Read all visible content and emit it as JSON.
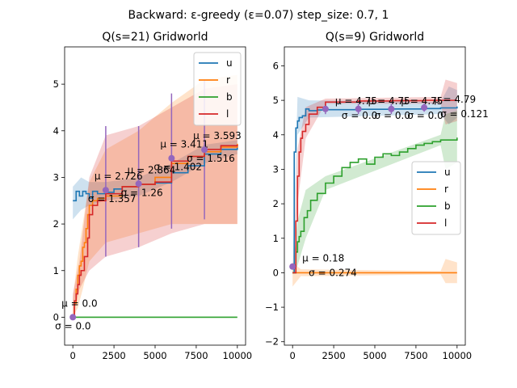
{
  "figure": {
    "suptitle": "Backward: ε-greedy (ε=0.07) step_size: 0.7, 1"
  },
  "chart_data": [
    {
      "type": "line",
      "title": "Q(s=21) Gridworld",
      "xlim": [
        -500,
        10500
      ],
      "ylim": [
        -0.6,
        5.8
      ],
      "xticks": [
        0,
        2500,
        5000,
        7500,
        10000
      ],
      "yticks": [
        0,
        1,
        2,
        3,
        4,
        5
      ],
      "legend_position": "top-right",
      "series": [
        {
          "name": "u",
          "color": "#1f77b4",
          "points": [
            [
              0,
              2.5
            ],
            [
              200,
              2.7
            ],
            [
              400,
              2.6
            ],
            [
              600,
              2.7
            ],
            [
              800,
              2.65
            ],
            [
              1000,
              2.55
            ],
            [
              1200,
              2.7
            ],
            [
              1500,
              2.65
            ],
            [
              2000,
              2.68
            ],
            [
              2500,
              2.75
            ],
            [
              3000,
              2.8
            ],
            [
              3500,
              2.8
            ],
            [
              4000,
              2.85
            ],
            [
              5000,
              2.88
            ],
            [
              6000,
              3.1
            ],
            [
              7000,
              3.25
            ],
            [
              8000,
              3.5
            ],
            [
              9000,
              3.6
            ],
            [
              10000,
              3.68
            ]
          ],
          "band": [
            [
              0,
              2.1,
              2.8
            ],
            [
              500,
              2.3,
              3.0
            ],
            [
              1000,
              2.4,
              2.9
            ],
            [
              2000,
              2.5,
              2.9
            ],
            [
              4000,
              2.6,
              3.0
            ],
            [
              6000,
              2.9,
              3.3
            ],
            [
              8000,
              3.3,
              3.7
            ],
            [
              10000,
              3.5,
              3.8
            ]
          ]
        },
        {
          "name": "r",
          "color": "#ff7f0e",
          "points": [
            [
              0,
              0.0
            ],
            [
              100,
              0.3
            ],
            [
              200,
              0.6
            ],
            [
              300,
              0.9
            ],
            [
              400,
              1.1
            ],
            [
              500,
              1.2
            ],
            [
              600,
              1.5
            ],
            [
              700,
              1.6
            ],
            [
              800,
              1.9
            ],
            [
              900,
              2.2
            ],
            [
              1000,
              2.4
            ],
            [
              1200,
              2.5
            ],
            [
              1500,
              2.55
            ],
            [
              2000,
              2.6
            ],
            [
              3000,
              2.8
            ],
            [
              4000,
              2.85
            ],
            [
              5000,
              3.0
            ],
            [
              6000,
              3.3
            ],
            [
              7000,
              3.45
            ],
            [
              8000,
              3.55
            ],
            [
              9000,
              3.65
            ],
            [
              10000,
              3.72
            ]
          ],
          "band": [
            [
              0,
              0.0,
              0.4
            ],
            [
              300,
              0.2,
              1.3
            ],
            [
              600,
              0.6,
              2.0
            ],
            [
              1000,
              1.2,
              2.9
            ],
            [
              2000,
              1.6,
              3.6
            ],
            [
              4000,
              1.8,
              4.0
            ],
            [
              6000,
              2.0,
              4.6
            ],
            [
              8000,
              2.0,
              5.1
            ],
            [
              10000,
              2.0,
              5.2
            ]
          ]
        },
        {
          "name": "b",
          "color": "#2ca02c",
          "points": [
            [
              0,
              0.0
            ],
            [
              10000,
              0.0
            ]
          ]
        },
        {
          "name": "l",
          "color": "#d62728",
          "points": [
            [
              0,
              0.0
            ],
            [
              100,
              0.35
            ],
            [
              200,
              0.5
            ],
            [
              300,
              0.7
            ],
            [
              400,
              0.9
            ],
            [
              500,
              1.0
            ],
            [
              700,
              1.3
            ],
            [
              900,
              1.7
            ],
            [
              1000,
              2.2
            ],
            [
              1200,
              2.4
            ],
            [
              1500,
              2.5
            ],
            [
              2000,
              2.65
            ],
            [
              3000,
              2.8
            ],
            [
              4000,
              2.85
            ],
            [
              5000,
              2.9
            ],
            [
              6000,
              3.35
            ],
            [
              7000,
              3.45
            ],
            [
              8000,
              3.6
            ],
            [
              9000,
              3.68
            ],
            [
              10000,
              3.7
            ]
          ],
          "band": [
            [
              0,
              0.0,
              0.5
            ],
            [
              400,
              0.6,
              1.2
            ],
            [
              1000,
              1.0,
              3.0
            ],
            [
              2000,
              1.3,
              3.9
            ],
            [
              4000,
              1.5,
              4.1
            ],
            [
              6000,
              1.8,
              4.5
            ],
            [
              8000,
              2.0,
              4.9
            ],
            [
              10000,
              2.0,
              5.0
            ]
          ]
        }
      ],
      "errorbars": [
        {
          "x": 2000,
          "low": 1.3,
          "high": 4.1
        },
        {
          "x": 4000,
          "low": 1.5,
          "high": 4.1
        },
        {
          "x": 6000,
          "low": 1.9,
          "high": 4.8
        },
        {
          "x": 8000,
          "low": 2.1,
          "high": 5.1
        }
      ],
      "markers": [
        {
          "x": 0,
          "y": 0.0,
          "mu": "$\\mu=$0.0",
          "sigma": "$\\sigma=$0.0"
        },
        {
          "x": 2000,
          "y": 2.726,
          "mu": "$\\mu=$2.726",
          "sigma": "$\\sigma=$1.357"
        },
        {
          "x": 4000,
          "y": 2.864,
          "mu": "$\\mu=$2.864",
          "sigma": "$\\sigma=$1.26"
        },
        {
          "x": 6000,
          "y": 3.411,
          "mu": "$\\mu=$3.411",
          "sigma": "$\\sigma=$1.402"
        },
        {
          "x": 8000,
          "y": 3.593,
          "mu": "$\\mu=$3.593",
          "sigma": "$\\sigma=$1.516"
        }
      ]
    },
    {
      "type": "line",
      "title": "Q(s=9) Gridworld",
      "xlim": [
        -500,
        10500
      ],
      "ylim": [
        -2.1,
        6.55
      ],
      "xticks": [
        0,
        2500,
        5000,
        7500,
        10000
      ],
      "yticks": [
        -2,
        -1,
        0,
        1,
        2,
        3,
        4,
        5,
        6
      ],
      "legend_position": "center-right",
      "series": [
        {
          "name": "u",
          "color": "#1f77b4",
          "points": [
            [
              0,
              0.0
            ],
            [
              100,
              3.5
            ],
            [
              200,
              4.2
            ],
            [
              300,
              4.4
            ],
            [
              400,
              4.5
            ],
            [
              600,
              4.55
            ],
            [
              800,
              4.75
            ],
            [
              1000,
              4.7
            ],
            [
              1500,
              4.72
            ],
            [
              2000,
              4.73
            ],
            [
              4000,
              4.74
            ],
            [
              6000,
              4.75
            ],
            [
              8000,
              4.76
            ],
            [
              9000,
              4.78
            ],
            [
              10000,
              4.82
            ]
          ],
          "band": [
            [
              0,
              0.0,
              0.0
            ],
            [
              300,
              4.0,
              5.1
            ],
            [
              1000,
              4.5,
              5.0
            ],
            [
              9000,
              4.6,
              4.95
            ],
            [
              9500,
              4.3,
              5.4
            ],
            [
              10000,
              4.5,
              5.3
            ]
          ]
        },
        {
          "name": "r",
          "color": "#ff7f0e",
          "points": [
            [
              0,
              0.0
            ],
            [
              10000,
              0.0
            ]
          ],
          "band": [
            [
              0,
              -0.4,
              0.3
            ],
            [
              500,
              -0.1,
              0.1
            ],
            [
              9000,
              -0.05,
              0.05
            ],
            [
              9300,
              -0.3,
              0.4
            ],
            [
              10000,
              -0.3,
              0.3
            ]
          ]
        },
        {
          "name": "b",
          "color": "#2ca02c",
          "points": [
            [
              0,
              0.0
            ],
            [
              100,
              0.0
            ],
            [
              200,
              0.6
            ],
            [
              300,
              0.9
            ],
            [
              400,
              1.05
            ],
            [
              500,
              1.2
            ],
            [
              700,
              1.6
            ],
            [
              900,
              1.8
            ],
            [
              1100,
              2.1
            ],
            [
              1500,
              2.3
            ],
            [
              2000,
              2.6
            ],
            [
              2500,
              2.8
            ],
            [
              3000,
              3.05
            ],
            [
              3500,
              3.2
            ],
            [
              4000,
              3.3
            ],
            [
              4500,
              3.15
            ],
            [
              5000,
              3.35
            ],
            [
              5500,
              3.45
            ],
            [
              6000,
              3.4
            ],
            [
              6500,
              3.5
            ],
            [
              7000,
              3.6
            ],
            [
              7500,
              3.7
            ],
            [
              8000,
              3.75
            ],
            [
              8500,
              3.8
            ],
            [
              9000,
              3.85
            ],
            [
              10000,
              3.92
            ]
          ],
          "band": [
            [
              0,
              0.0,
              0.0
            ],
            [
              300,
              0.2,
              1.5
            ],
            [
              800,
              1.0,
              2.4
            ],
            [
              2000,
              2.4,
              2.8
            ],
            [
              9000,
              3.7,
              4.0
            ],
            [
              9300,
              3.0,
              4.6
            ],
            [
              10000,
              3.2,
              4.7
            ]
          ]
        },
        {
          "name": "l",
          "color": "#d62728",
          "points": [
            [
              0,
              0.0
            ],
            [
              200,
              1.5
            ],
            [
              300,
              2.8
            ],
            [
              400,
              3.5
            ],
            [
              500,
              3.9
            ],
            [
              600,
              4.1
            ],
            [
              800,
              4.3
            ],
            [
              1000,
              4.6
            ],
            [
              1500,
              4.8
            ],
            [
              2000,
              4.95
            ],
            [
              4000,
              4.98
            ],
            [
              6000,
              4.99
            ],
            [
              8000,
              5.0
            ],
            [
              10000,
              5.0
            ]
          ],
          "band": [
            [
              0,
              0.0,
              0.0
            ],
            [
              300,
              2.0,
              3.6
            ],
            [
              800,
              3.9,
              4.8
            ],
            [
              2000,
              4.9,
              5.05
            ],
            [
              9000,
              4.9,
              5.1
            ],
            [
              9300,
              4.3,
              5.6
            ],
            [
              10000,
              4.4,
              5.5
            ]
          ]
        }
      ],
      "errorbars": [
        {
          "x": 2000,
          "low": 4.6,
          "high": 4.9
        },
        {
          "x": 4000,
          "low": 4.6,
          "high": 4.9
        },
        {
          "x": 6000,
          "low": 4.6,
          "high": 4.9
        },
        {
          "x": 8000,
          "low": 4.67,
          "high": 4.91
        }
      ],
      "markers": [
        {
          "x": 0,
          "y": 0.18,
          "mu": "$\\mu=$0.18",
          "sigma": "$\\sigma=$0.274"
        },
        {
          "x": 2000,
          "y": 4.75,
          "mu": "$\\mu=$4.75",
          "sigma": "$\\sigma=$0.0"
        },
        {
          "x": 4000,
          "y": 4.75,
          "mu": "$\\mu=$4.75",
          "sigma": "$\\sigma=$0.0"
        },
        {
          "x": 6000,
          "y": 4.75,
          "mu": "$\\mu=$4.75",
          "sigma": "$\\sigma=$0.0"
        },
        {
          "x": 8000,
          "y": 4.79,
          "mu": "$\\mu=$4.79",
          "sigma": "$\\sigma=$0.121"
        }
      ]
    }
  ]
}
